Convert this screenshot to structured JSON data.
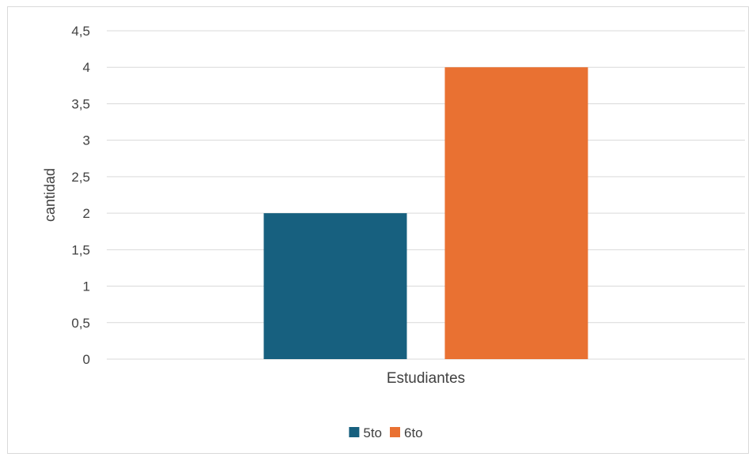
{
  "chart_data": {
    "type": "bar",
    "title": "",
    "categories": [
      "Estudiantes"
    ],
    "series": [
      {
        "name": "5to",
        "values": [
          2
        ],
        "color": "#17607f"
      },
      {
        "name": "6to",
        "values": [
          4
        ],
        "color": "#e97132"
      }
    ],
    "xlabel": "",
    "ylabel": "cantidad",
    "ylim": [
      0,
      4.5
    ],
    "yticks": [
      "0",
      "0,5",
      "1",
      "1,5",
      "2",
      "2,5",
      "3",
      "3,5",
      "4",
      "4,5"
    ],
    "grid": true,
    "gridline_color": "#d9d9d9",
    "legend_position": "bottom"
  }
}
